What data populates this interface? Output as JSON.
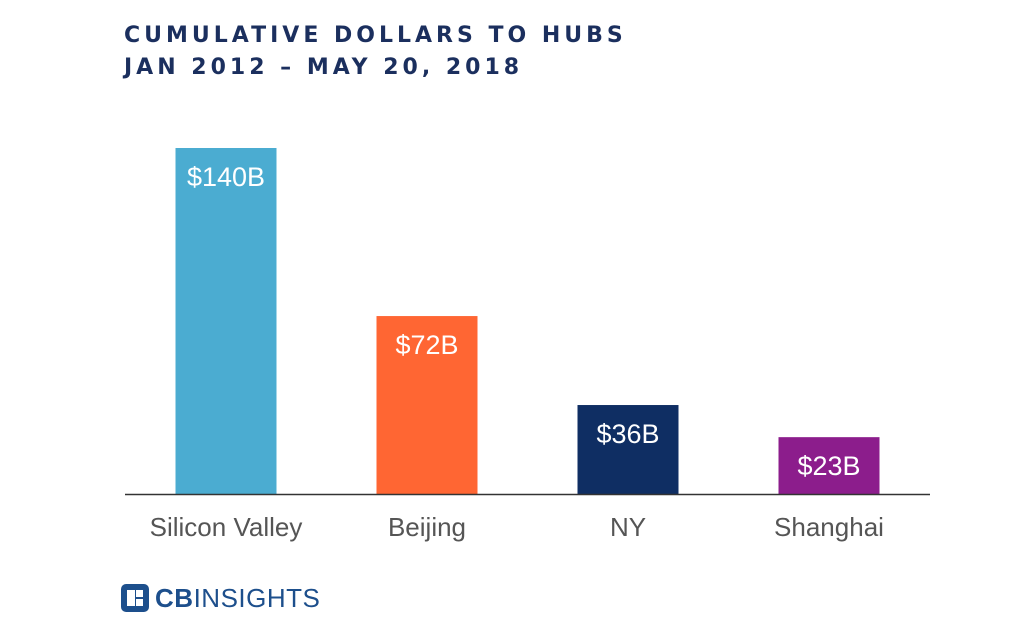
{
  "header": {
    "title_line1": "CUMULATIVE DOLLARS TO HUBS",
    "title_line2": "JAN 2012 – MAY 20, 2018"
  },
  "chart_data": {
    "type": "bar",
    "categories": [
      "Silicon Valley",
      "Beijing",
      "NY",
      "Shanghai"
    ],
    "values": [
      140,
      72,
      36,
      23
    ],
    "data_labels": [
      "$140B",
      "$72B",
      "$36B",
      "$23B"
    ],
    "colors": [
      "#4bacd1",
      "#ff6633",
      "#0f2e63",
      "#8c1d8c"
    ],
    "title": "CUMULATIVE DOLLARS TO HUBS",
    "subtitle": "JAN 2012 – MAY 20, 2018",
    "ylim": [
      0,
      140
    ],
    "grid": false,
    "legend": "none"
  },
  "footer": {
    "logo_brand": "CB",
    "logo_rest": "INSIGHTS",
    "logo_icon": "cb-insights-logo-icon"
  }
}
